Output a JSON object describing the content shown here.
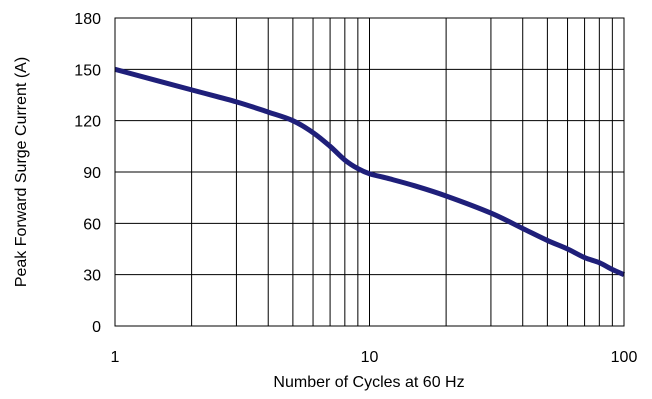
{
  "chart_data": {
    "type": "line",
    "xlabel": "Number of Cycles at 60 Hz",
    "ylabel": "Peak Forward Surge Current (A)",
    "x_scale": "log",
    "xlim": [
      1,
      100
    ],
    "ylim": [
      0,
      180
    ],
    "x_ticks": [
      1,
      10,
      100
    ],
    "x_tick_labels": [
      "1",
      "10",
      "100"
    ],
    "y_ticks": [
      0,
      30,
      60,
      90,
      120,
      150,
      180
    ],
    "y_tick_labels": [
      "0",
      "30",
      "60",
      "90",
      "120",
      "150",
      "180"
    ],
    "grid": true,
    "legend": "none",
    "series": [
      {
        "x": [
          1,
          2,
          3,
          4,
          5,
          6,
          7,
          8,
          9,
          10,
          12,
          15,
          20,
          30,
          40,
          50,
          60,
          70,
          80,
          90,
          100
        ],
        "y": [
          150,
          138,
          131,
          125,
          120,
          113,
          105,
          97,
          92,
          89,
          86,
          82,
          76,
          66,
          57,
          50,
          45,
          40,
          37,
          33,
          30
        ],
        "color": "#1f1f7a"
      }
    ]
  }
}
